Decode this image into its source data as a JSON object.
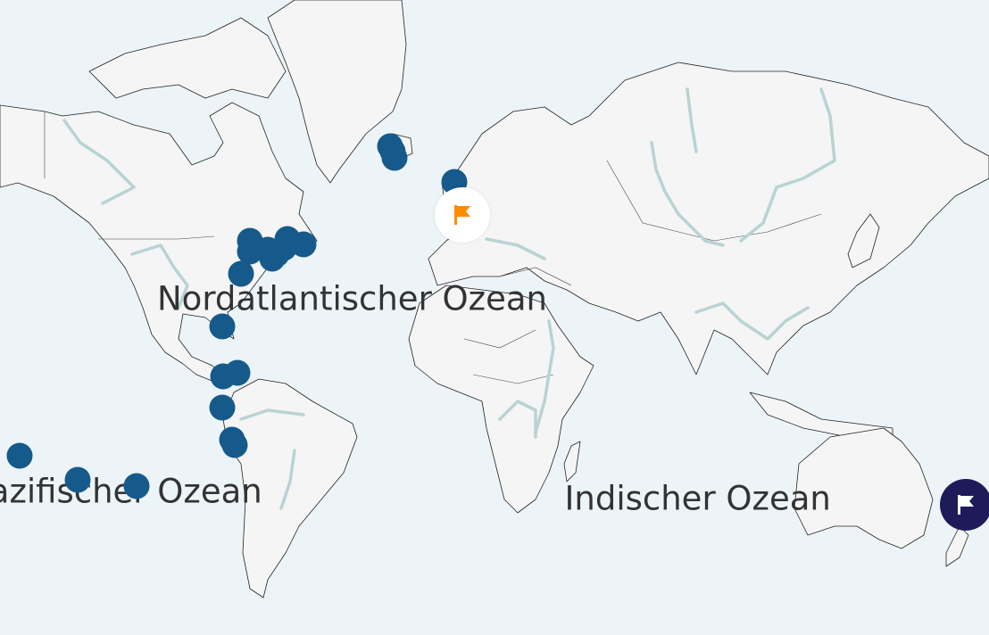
{
  "map": {
    "colors": {
      "water": "#ecf4f8",
      "land": "#f5f5f5",
      "river": "#b8d3d3",
      "marker": "#155a8a",
      "flag_selected": "#ff8c00",
      "flag_dark_bg": "#1f1b5a"
    },
    "ocean_labels": [
      {
        "text": "Nordatlantischer Ozean",
        "lon": -37.5,
        "lat": 31
      },
      {
        "text": "Pazifischer Ozean",
        "lon": -119,
        "lat": -32.5
      },
      {
        "text": "Indischer Ozean",
        "lon": 82,
        "lat": -34.5
      }
    ],
    "markers": [
      {
        "lon": -24.4,
        "lat": 64.6
      },
      {
        "lon": -23.5,
        "lat": 63.9
      },
      {
        "lon": -22.8,
        "lat": 62.9
      },
      {
        "lon": -2.2,
        "lat": 58.8
      },
      {
        "lon": -72.8,
        "lat": 46.4
      },
      {
        "lon": -72.8,
        "lat": 43.9
      },
      {
        "lon": -66.7,
        "lat": 44.3
      },
      {
        "lon": -63.6,
        "lat": 43.2
      },
      {
        "lon": -59.9,
        "lat": 46.9
      },
      {
        "lon": -61.1,
        "lat": 44.8
      },
      {
        "lon": -54.3,
        "lat": 45.6
      },
      {
        "lon": -65.1,
        "lat": 42.1
      },
      {
        "lon": -75.9,
        "lat": 38.0
      },
      {
        "lon": -82.4,
        "lat": 22.3
      },
      {
        "lon": -82.1,
        "lat": 5.6
      },
      {
        "lon": -77.2,
        "lat": 6.8
      },
      {
        "lon": -82.4,
        "lat": -5.3
      },
      {
        "lon": -79.0,
        "lat": -16.1
      },
      {
        "lon": -78.1,
        "lat": -17.9
      },
      {
        "lon": -152.5,
        "lat": -21.5
      },
      {
        "lon": -132.4,
        "lat": -29.0
      },
      {
        "lon": -112.0,
        "lat": -30.9
      }
    ],
    "flags": [
      {
        "lon": 0.6,
        "lat": 52.4,
        "style": "selected",
        "icon": "flag-icon"
      },
      {
        "lon": 174.7,
        "lat": -36.3,
        "style": "dark",
        "icon": "flag-icon"
      }
    ]
  }
}
